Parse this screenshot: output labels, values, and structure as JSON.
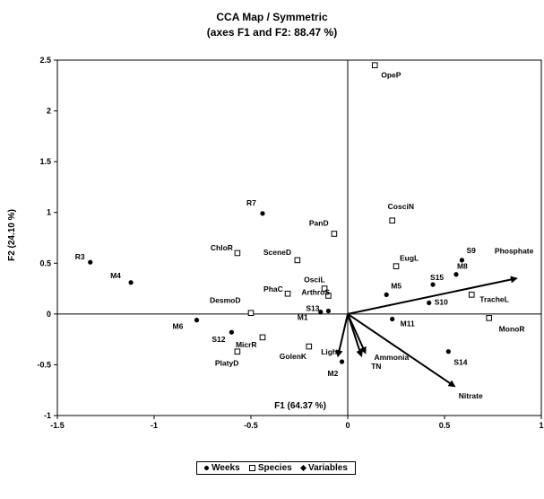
{
  "chart_data": {
    "type": "scatter",
    "title": "CCA Map / Symmetric",
    "subtitle": "(axes F1 and F2: 88.47 %)",
    "xlabel": "F1 (64.37 %)",
    "ylabel": "F2 (24.10 %)",
    "xlim": [
      -1.5,
      1
    ],
    "ylim": [
      -1,
      2.5
    ],
    "xticks": [
      "-1.5",
      "-1",
      "-0.5",
      "0",
      "0.5",
      "1"
    ],
    "yticks": [
      "-1",
      "-0.5",
      "0",
      "0.5",
      "1",
      "1.5",
      "2",
      "2.5"
    ],
    "legend": [
      "Weeks",
      "Species",
      "Variables"
    ],
    "legend_position": "bottom",
    "series": [
      {
        "name": "Weeks",
        "marker": "circle",
        "points": [
          {
            "label": "R3",
            "x": -1.33,
            "y": 0.51
          },
          {
            "label": "M4",
            "x": -1.12,
            "y": 0.31
          },
          {
            "label": "R7",
            "x": -0.44,
            "y": 0.99
          },
          {
            "label": "M6",
            "x": -0.78,
            "y": -0.06
          },
          {
            "label": "S12",
            "x": -0.6,
            "y": -0.18
          },
          {
            "label": "M1",
            "x": -0.14,
            "y": 0.02
          },
          {
            "label": "S13",
            "x": -0.1,
            "y": 0.03
          },
          {
            "label": "M2",
            "x": -0.03,
            "y": -0.47
          },
          {
            "label": "M5",
            "x": 0.2,
            "y": 0.19
          },
          {
            "label": "M11",
            "x": 0.23,
            "y": -0.05
          },
          {
            "label": "S15",
            "x": 0.44,
            "y": 0.29
          },
          {
            "label": "S10",
            "x": 0.42,
            "y": 0.11
          },
          {
            "label": "M8",
            "x": 0.56,
            "y": 0.39
          },
          {
            "label": "S9",
            "x": 0.59,
            "y": 0.53
          },
          {
            "label": "S14",
            "x": 0.52,
            "y": -0.37
          }
        ]
      },
      {
        "name": "Species",
        "marker": "square",
        "points": [
          {
            "label": "OpeP",
            "x": 0.14,
            "y": 2.45
          },
          {
            "label": "CosciN",
            "x": 0.23,
            "y": 0.92
          },
          {
            "label": "PanD",
            "x": -0.07,
            "y": 0.79
          },
          {
            "label": "ChloR",
            "x": -0.57,
            "y": 0.6
          },
          {
            "label": "SceneD",
            "x": -0.26,
            "y": 0.53
          },
          {
            "label": "EugL",
            "x": 0.25,
            "y": 0.47
          },
          {
            "label": "OsciL",
            "x": -0.12,
            "y": 0.25
          },
          {
            "label": "ArthroS",
            "x": -0.1,
            "y": 0.18
          },
          {
            "label": "PhaC",
            "x": -0.31,
            "y": 0.2
          },
          {
            "label": "TracheL",
            "x": 0.64,
            "y": 0.19
          },
          {
            "label": "DesmoD",
            "x": -0.5,
            "y": 0.01
          },
          {
            "label": "MicrR",
            "x": -0.44,
            "y": -0.23
          },
          {
            "label": "PlatyD",
            "x": -0.57,
            "y": -0.37
          },
          {
            "label": "GolenK",
            "x": -0.2,
            "y": -0.32
          },
          {
            "label": "MonoR",
            "x": 0.73,
            "y": -0.04
          }
        ]
      },
      {
        "name": "Variables",
        "marker": "arrow",
        "points": [
          {
            "label": "Phosphate",
            "x": 0.87,
            "y": 0.35
          },
          {
            "label": "Nitrate",
            "x": 0.55,
            "y": -0.71
          },
          {
            "label": "Ammonia",
            "x": 0.09,
            "y": -0.38
          },
          {
            "label": "TN",
            "x": 0.07,
            "y": -0.41
          },
          {
            "label": "Light",
            "x": -0.05,
            "y": -0.41
          }
        ]
      }
    ]
  }
}
